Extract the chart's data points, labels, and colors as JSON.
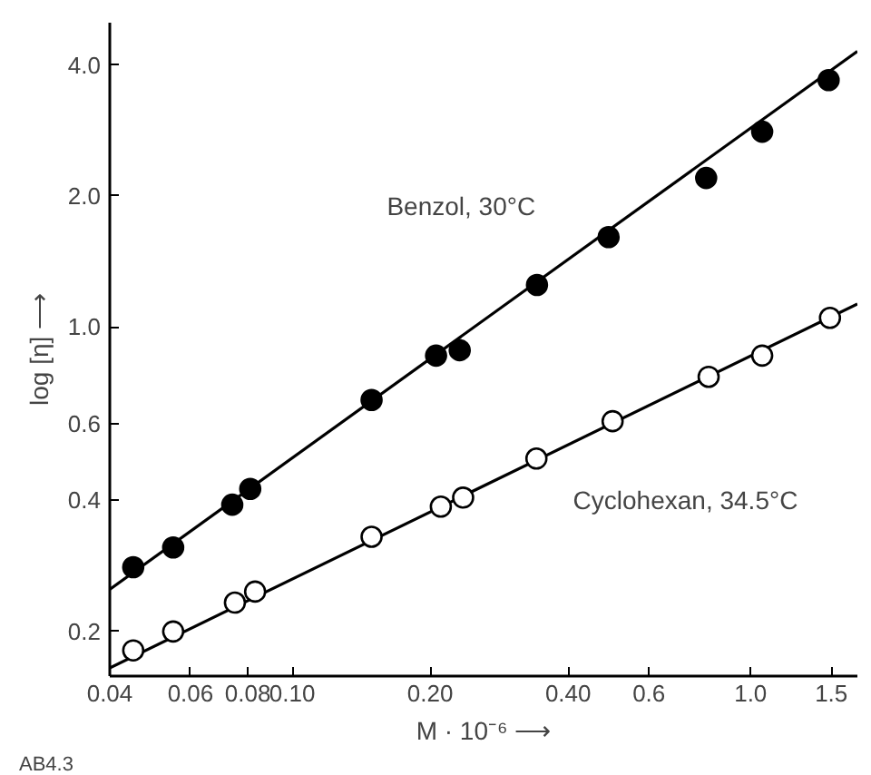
{
  "chart_data": {
    "type": "scatter",
    "xlabel": "M · 10⁻⁶ ⟶",
    "ylabel": "log [η] ⟶",
    "log": "xy",
    "grid": false,
    "marker": "circle",
    "xlim": [
      0.04,
      1.71
    ],
    "ylim": [
      0.158,
      5.0
    ],
    "xticks": [
      {
        "value": 0.04,
        "label": "0.04"
      },
      {
        "value": 0.06,
        "label": "0.06"
      },
      {
        "value": 0.08,
        "label": "0.08"
      },
      {
        "value": 0.1,
        "label": "0.10"
      },
      {
        "value": 0.2,
        "label": "0.20"
      },
      {
        "value": 0.4,
        "label": "0.40"
      },
      {
        "value": 0.6,
        "label": "0.6"
      },
      {
        "value": 1.0,
        "label": "1.0"
      },
      {
        "value": 1.5,
        "label": "1.5"
      }
    ],
    "yticks": [
      {
        "value": 0.2,
        "label": "0.2"
      },
      {
        "value": 0.4,
        "label": "0.4"
      },
      {
        "value": 0.6,
        "label": "0.6"
      },
      {
        "value": 1.0,
        "label": "1.0"
      },
      {
        "value": 2.0,
        "label": "2.0"
      },
      {
        "value": 4.0,
        "label": "4.0"
      }
    ],
    "series": [
      {
        "type": "line",
        "marker": "none",
        "color": "#000000",
        "line_style": "solid",
        "x": [
          0.04,
          1.71
        ],
        "values": [
          0.25,
          4.3
        ]
      },
      {
        "type": "line",
        "marker": "none",
        "color": "#000000",
        "line_style": "solid",
        "x": [
          0.04,
          1.71
        ],
        "values": [
          0.165,
          1.13
        ]
      },
      {
        "color": "#000000",
        "x": [
          0.045,
          0.055,
          0.074,
          0.081,
          0.149,
          0.206,
          0.232,
          0.342,
          0.49,
          0.8,
          1.06,
          1.48
        ],
        "values": [
          0.281,
          0.312,
          0.391,
          0.425,
          0.68,
          0.86,
          0.885,
          1.25,
          1.61,
          2.2,
          2.81,
          3.69
        ]
      },
      {
        "color": "#ffffff",
        "x": [
          0.045,
          0.055,
          0.075,
          0.083,
          0.149,
          0.211,
          0.236,
          0.341,
          0.5,
          0.81,
          1.06,
          1.49
        ],
        "values": [
          0.181,
          0.2,
          0.233,
          0.247,
          0.33,
          0.387,
          0.406,
          0.499,
          0.608,
          0.769,
          0.86,
          1.05
        ]
      }
    ],
    "annotations": [
      "Benzol, 30°C",
      "Cyclohexan, 34.5°C",
      "AB4.3"
    ]
  }
}
